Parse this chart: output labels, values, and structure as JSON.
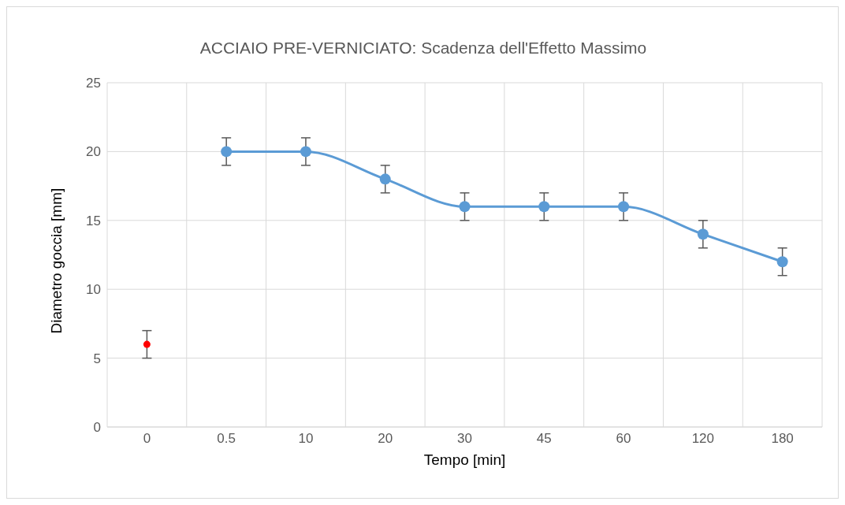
{
  "chart_data": {
    "type": "line",
    "title": "ACCIAIO PRE-VERNICIATO: Scadenza dell'Effetto Massimo",
    "xlabel": "Tempo [min]",
    "ylabel": "Diametro goccia [mm]",
    "categories": [
      "0",
      "0.5",
      "10",
      "20",
      "30",
      "45",
      "60",
      "120",
      "180"
    ],
    "series": [
      {
        "type": "scatter",
        "color": "#ff0000",
        "values": [
          6,
          null,
          null,
          null,
          null,
          null,
          null,
          null,
          null
        ],
        "errors": [
          1,
          null,
          null,
          null,
          null,
          null,
          null,
          null,
          null
        ]
      },
      {
        "type": "line",
        "color": "#5b9bd5",
        "values": [
          null,
          20,
          20,
          18,
          16,
          16,
          16,
          14,
          12
        ],
        "errors": [
          null,
          1,
          1,
          1,
          1,
          1,
          1,
          1,
          1
        ]
      }
    ],
    "ylim": [
      0,
      25
    ],
    "yticks": [
      0,
      5,
      10,
      15,
      20,
      25
    ],
    "grid": true,
    "marker": "circle",
    "line_style": "solid"
  }
}
